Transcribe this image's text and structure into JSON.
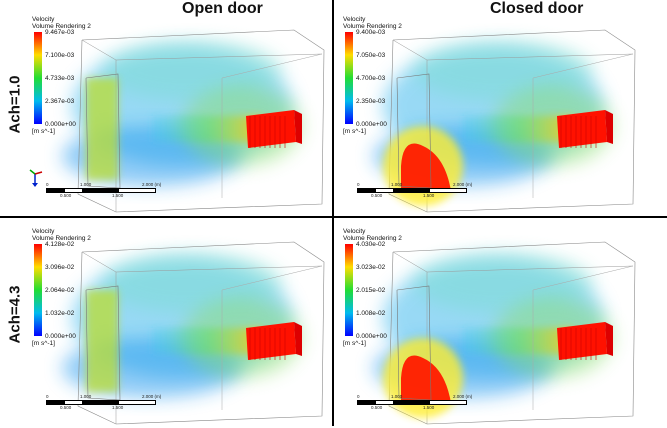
{
  "column_titles": [
    "Open door",
    "Closed door"
  ],
  "row_titles": [
    "Ach=1.0",
    "Ach=4.3"
  ],
  "panels": [
    {
      "legend_title_1": "Velocity",
      "legend_title_2": "Volume Rendering 2",
      "ticks": [
        "9.467e-03",
        "7.100e-03",
        "4.733e-03",
        "2.367e-03",
        "0.000e+00"
      ],
      "unit": "[m s^-1]",
      "scale_top": [
        "0",
        "1.000",
        "2.000 (m)"
      ],
      "scale_bottom": [
        "0.500",
        "1.500"
      ]
    },
    {
      "legend_title_1": "Velocity",
      "legend_title_2": "Volume Rendering 2",
      "ticks": [
        "9.400e-03",
        "7.050e-03",
        "4.700e-03",
        "2.350e-03",
        "0.000e+00"
      ],
      "unit": "[m s^-1]",
      "scale_top": [
        "0",
        "1.000",
        "2.000 (m)"
      ],
      "scale_bottom": [
        "0.500",
        "1.500"
      ]
    },
    {
      "legend_title_1": "Velocity",
      "legend_title_2": "Volume Rendering 2",
      "ticks": [
        "4.128e-02",
        "3.096e-02",
        "2.064e-02",
        "1.032e-02",
        "0.000e+00"
      ],
      "unit": "[m s^-1]",
      "scale_top": [
        "0",
        "1.000",
        "2.000 (m)"
      ],
      "scale_bottom": [
        "0.500",
        "1.500"
      ]
    },
    {
      "legend_title_1": "Velocity",
      "legend_title_2": "Volume Rendering 2",
      "ticks": [
        "4.030e-02",
        "3.023e-02",
        "2.015e-02",
        "1.008e-02",
        "0.000e+00"
      ],
      "unit": "[m s^-1]",
      "scale_top": [
        "0",
        "1.000",
        "2.000 (m)"
      ],
      "scale_bottom": [
        "0.500",
        "1.500"
      ]
    }
  ],
  "colors": {
    "max": "#ff0000",
    "high": "#ffdd00",
    "mid": "#22dd33",
    "low": "#00bbee",
    "min": "#0000ff"
  }
}
